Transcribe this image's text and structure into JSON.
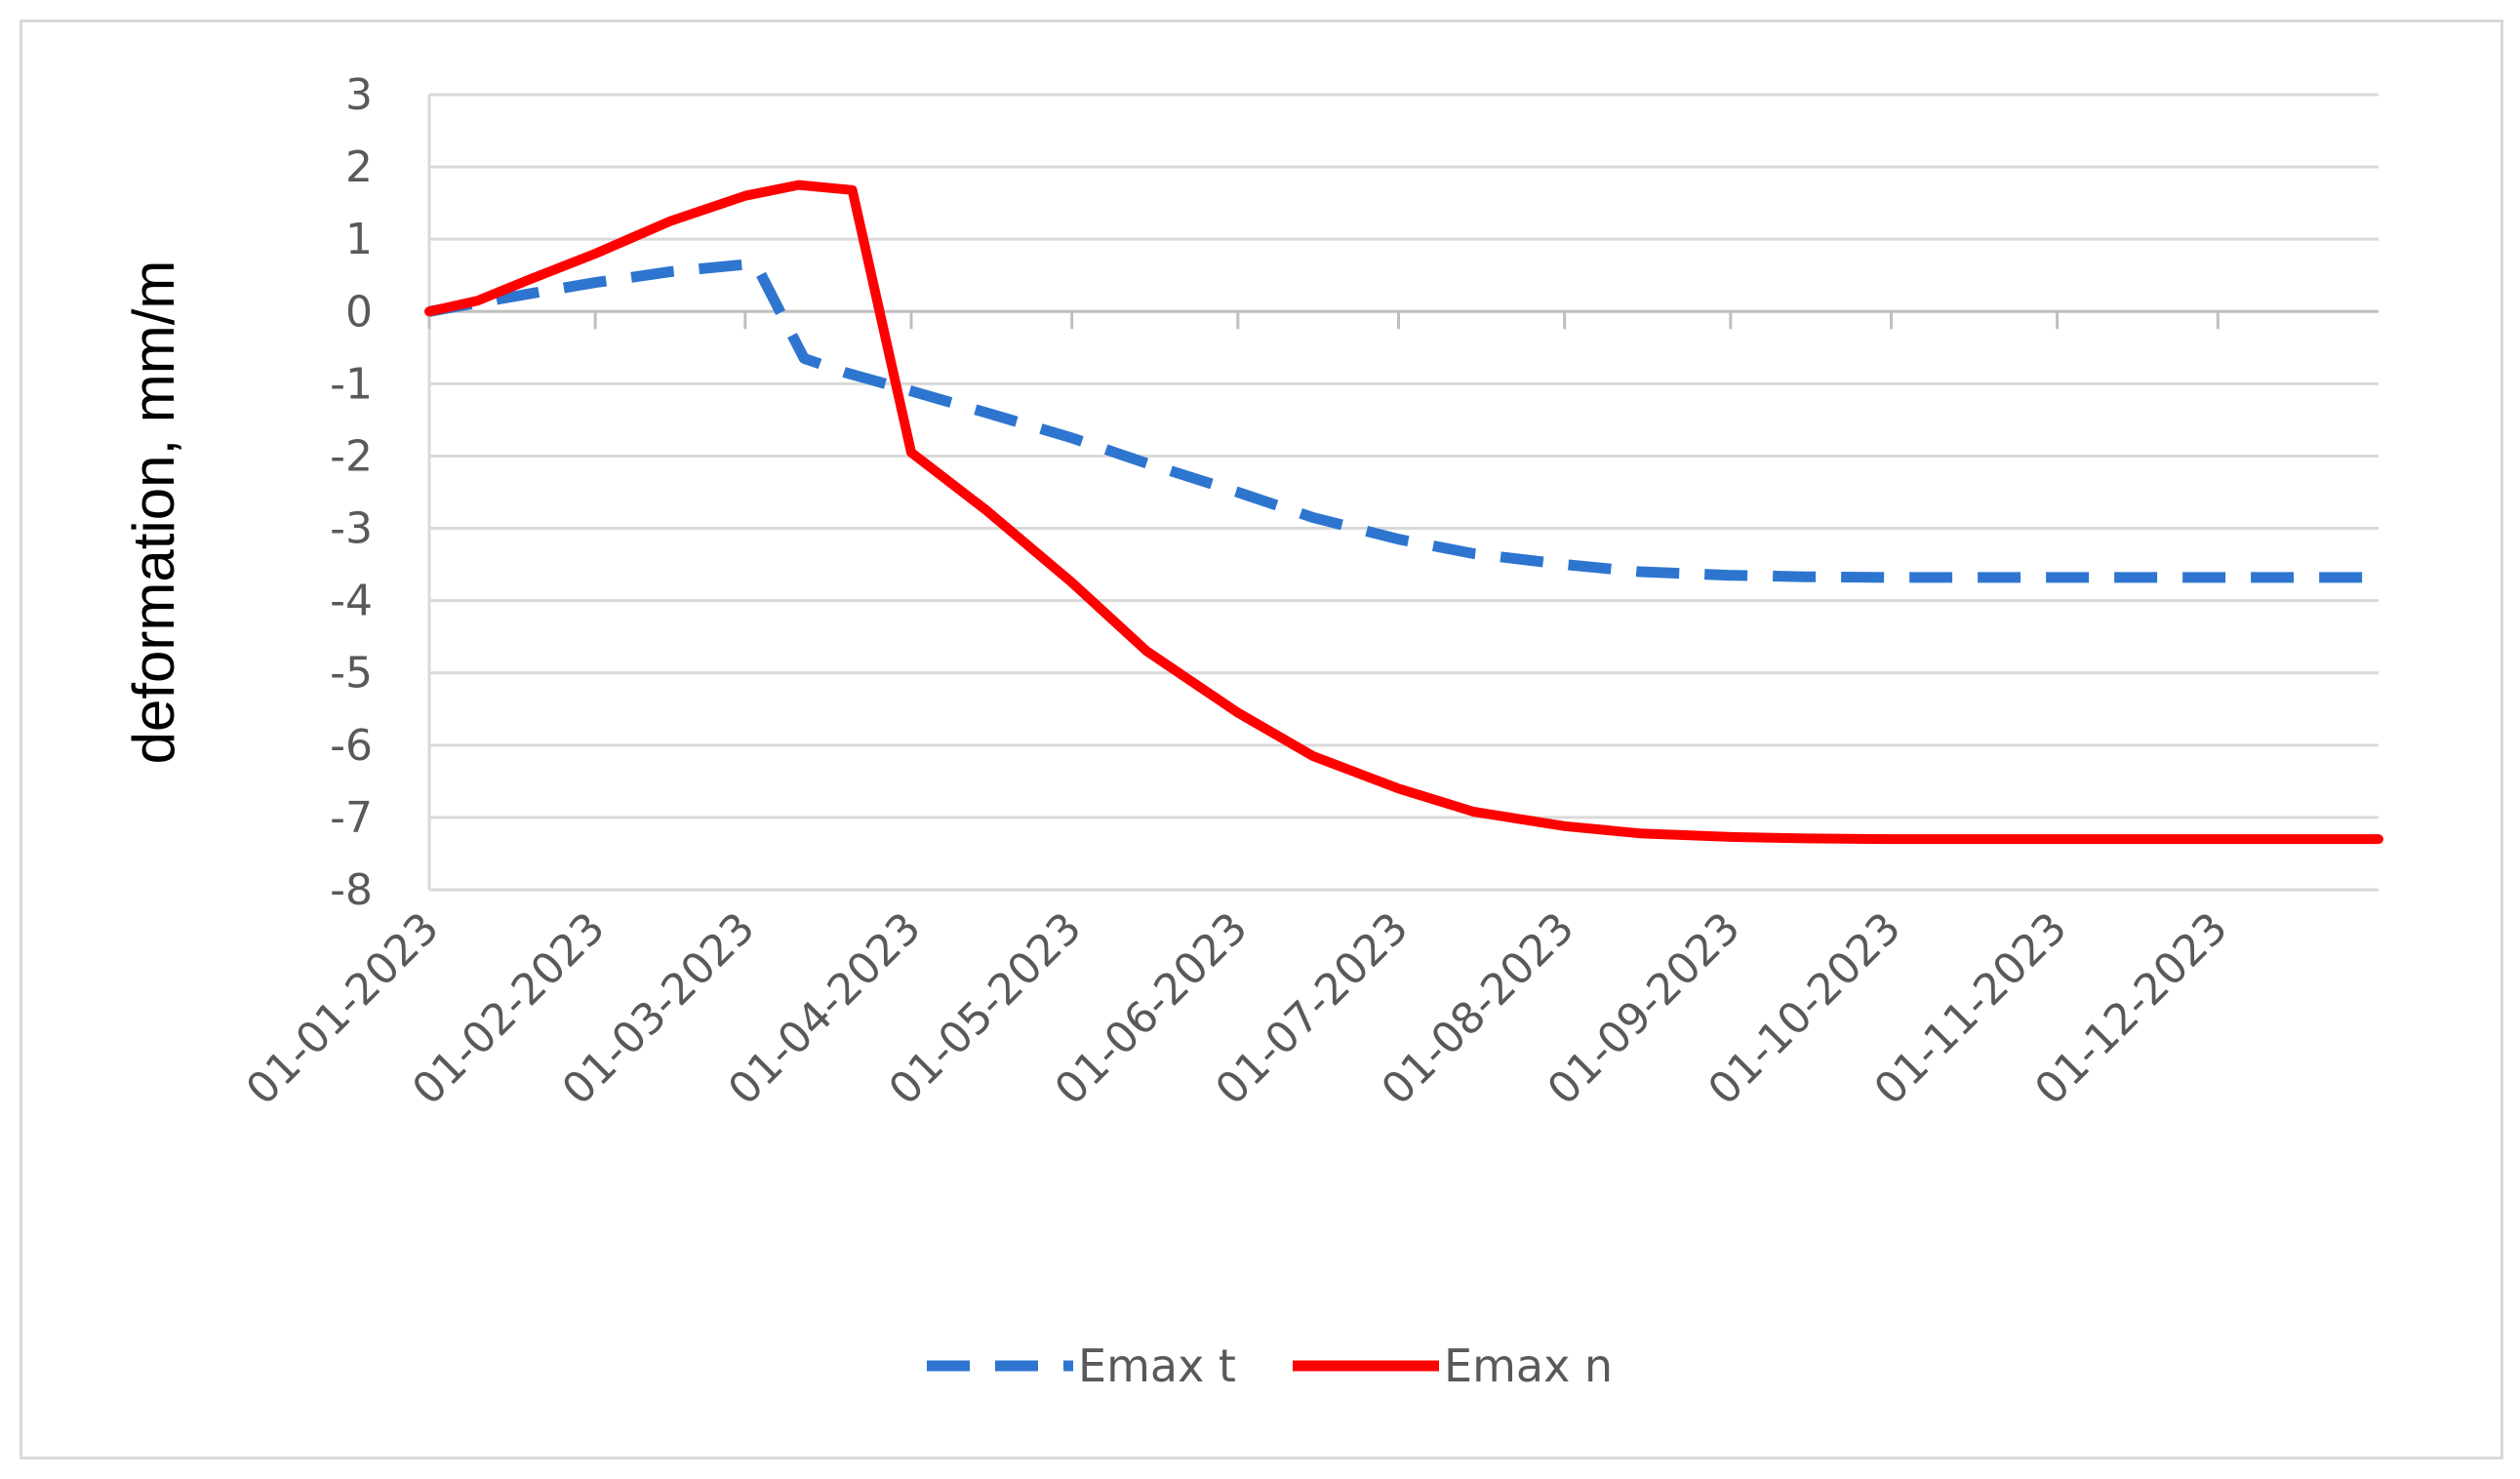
{
  "chart_data": {
    "type": "line",
    "ylabel": "deformation, mm/m",
    "xlabel": "",
    "title": "",
    "ylim": [
      -8,
      3
    ],
    "yticks": [
      3,
      2,
      1,
      0,
      -1,
      -2,
      -3,
      -4,
      -5,
      -6,
      -7,
      -8
    ],
    "x_range": [
      "2023-01-01",
      "2023-12-31"
    ],
    "x_ticks": [
      {
        "date": "2023-01-01",
        "label": "01-01-2023"
      },
      {
        "date": "2023-02-01",
        "label": "01-02-2023"
      },
      {
        "date": "2023-03-01",
        "label": "01-03-2023"
      },
      {
        "date": "2023-04-01",
        "label": "01-04-2023"
      },
      {
        "date": "2023-05-01",
        "label": "01-05-2023"
      },
      {
        "date": "2023-06-01",
        "label": "01-06-2023"
      },
      {
        "date": "2023-07-01",
        "label": "01-07-2023"
      },
      {
        "date": "2023-08-01",
        "label": "01-08-2023"
      },
      {
        "date": "2023-09-01",
        "label": "01-09-2023"
      },
      {
        "date": "2023-10-01",
        "label": "01-10-2023"
      },
      {
        "date": "2023-11-01",
        "label": "01-11-2023"
      },
      {
        "date": "2023-12-01",
        "label": "01-12-2023"
      }
    ],
    "grid": true,
    "legend_position": "bottom",
    "series": [
      {
        "name": "Emax t",
        "color": "#2e75d0",
        "style": "dashed",
        "points": [
          [
            "2023-01-01",
            0.0
          ],
          [
            "2023-01-10",
            0.12
          ],
          [
            "2023-01-20",
            0.25
          ],
          [
            "2023-02-01",
            0.4
          ],
          [
            "2023-02-15",
            0.55
          ],
          [
            "2023-03-01",
            0.65
          ],
          [
            "2023-03-03",
            0.65
          ],
          [
            "2023-03-12",
            -0.65
          ],
          [
            "2023-03-20",
            -0.85
          ],
          [
            "2023-04-01",
            -1.1
          ],
          [
            "2023-04-15",
            -1.4
          ],
          [
            "2023-05-01",
            -1.75
          ],
          [
            "2023-05-15",
            -2.1
          ],
          [
            "2023-06-01",
            -2.5
          ],
          [
            "2023-06-15",
            -2.85
          ],
          [
            "2023-07-01",
            -3.15
          ],
          [
            "2023-07-15",
            -3.35
          ],
          [
            "2023-08-01",
            -3.5
          ],
          [
            "2023-08-15",
            -3.6
          ],
          [
            "2023-09-01",
            -3.65
          ],
          [
            "2023-09-15",
            -3.67
          ],
          [
            "2023-10-01",
            -3.68
          ],
          [
            "2023-11-01",
            -3.68
          ],
          [
            "2023-12-01",
            -3.68
          ],
          [
            "2023-12-31",
            -3.68
          ]
        ]
      },
      {
        "name": "Emax n",
        "color": "#ff0000",
        "style": "solid",
        "points": [
          [
            "2023-01-01",
            0.0
          ],
          [
            "2023-01-10",
            0.15
          ],
          [
            "2023-01-20",
            0.45
          ],
          [
            "2023-02-01",
            0.8
          ],
          [
            "2023-02-15",
            1.25
          ],
          [
            "2023-03-01",
            1.6
          ],
          [
            "2023-03-11",
            1.75
          ],
          [
            "2023-03-21",
            1.68
          ],
          [
            "2023-04-01",
            -1.95
          ],
          [
            "2023-04-15",
            -2.75
          ],
          [
            "2023-05-01",
            -3.75
          ],
          [
            "2023-05-15",
            -4.7
          ],
          [
            "2023-06-01",
            -5.55
          ],
          [
            "2023-06-15",
            -6.15
          ],
          [
            "2023-07-01",
            -6.6
          ],
          [
            "2023-07-15",
            -6.92
          ],
          [
            "2023-08-01",
            -7.12
          ],
          [
            "2023-08-15",
            -7.22
          ],
          [
            "2023-09-01",
            -7.27
          ],
          [
            "2023-09-15",
            -7.29
          ],
          [
            "2023-10-01",
            -7.3
          ],
          [
            "2023-11-01",
            -7.3
          ],
          [
            "2023-12-01",
            -7.3
          ],
          [
            "2023-12-31",
            -7.3
          ]
        ]
      }
    ]
  }
}
